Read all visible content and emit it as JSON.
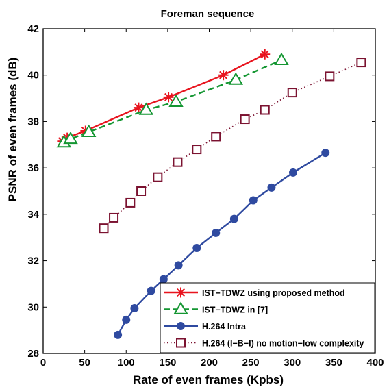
{
  "chart_data": {
    "type": "line",
    "title": "Foreman sequence",
    "xlabel": "Rate of even frames (Kpbs)",
    "ylabel": "PSNR of even frames (dB)",
    "xlim": [
      0,
      400
    ],
    "ylim": [
      28,
      42
    ],
    "xticks": [
      "0",
      "50",
      "100",
      "150",
      "200",
      "250",
      "300",
      "350",
      "400"
    ],
    "yticks": [
      "28",
      "30",
      "32",
      "34",
      "36",
      "38",
      "40",
      "42"
    ],
    "grid": false,
    "legend_position": "bottom-right",
    "series": [
      {
        "name": "IST−TDWZ using proposed method",
        "color": "#e8141e",
        "line": "solid",
        "marker": "asterisk",
        "x": [
          23,
          29,
          51,
          115,
          151,
          217,
          267
        ],
        "y": [
          37.15,
          37.3,
          37.6,
          38.6,
          39.05,
          40.0,
          40.9
        ]
      },
      {
        "name": "IST−TDWZ in [7]",
        "color": "#149632",
        "line": "dashed",
        "marker": "triangle",
        "x": [
          25,
          33,
          55,
          124,
          160,
          232,
          287
        ],
        "y": [
          37.1,
          37.25,
          37.55,
          38.5,
          38.85,
          39.8,
          40.65
        ]
      },
      {
        "name": "H.264 Intra",
        "color": "#2f4aa0",
        "line": "solid",
        "marker": "circle",
        "x": [
          90,
          100,
          110,
          130,
          145,
          163,
          185,
          208,
          230,
          253,
          275,
          301,
          340
        ],
        "y": [
          28.8,
          29.45,
          29.95,
          30.7,
          31.2,
          31.8,
          32.55,
          33.2,
          33.8,
          34.6,
          35.15,
          35.8,
          36.65
        ]
      },
      {
        "name": "H.264 (I−B−I) no motion−low complexity",
        "color": "#7b1230",
        "line": "dotted",
        "marker": "square",
        "x": [
          73,
          85,
          105,
          118,
          138,
          162,
          185,
          208,
          243,
          267,
          300,
          345,
          383
        ],
        "y": [
          33.4,
          33.85,
          34.5,
          35.0,
          35.6,
          36.25,
          36.8,
          37.35,
          38.1,
          38.5,
          39.25,
          39.95,
          40.55
        ]
      }
    ]
  }
}
